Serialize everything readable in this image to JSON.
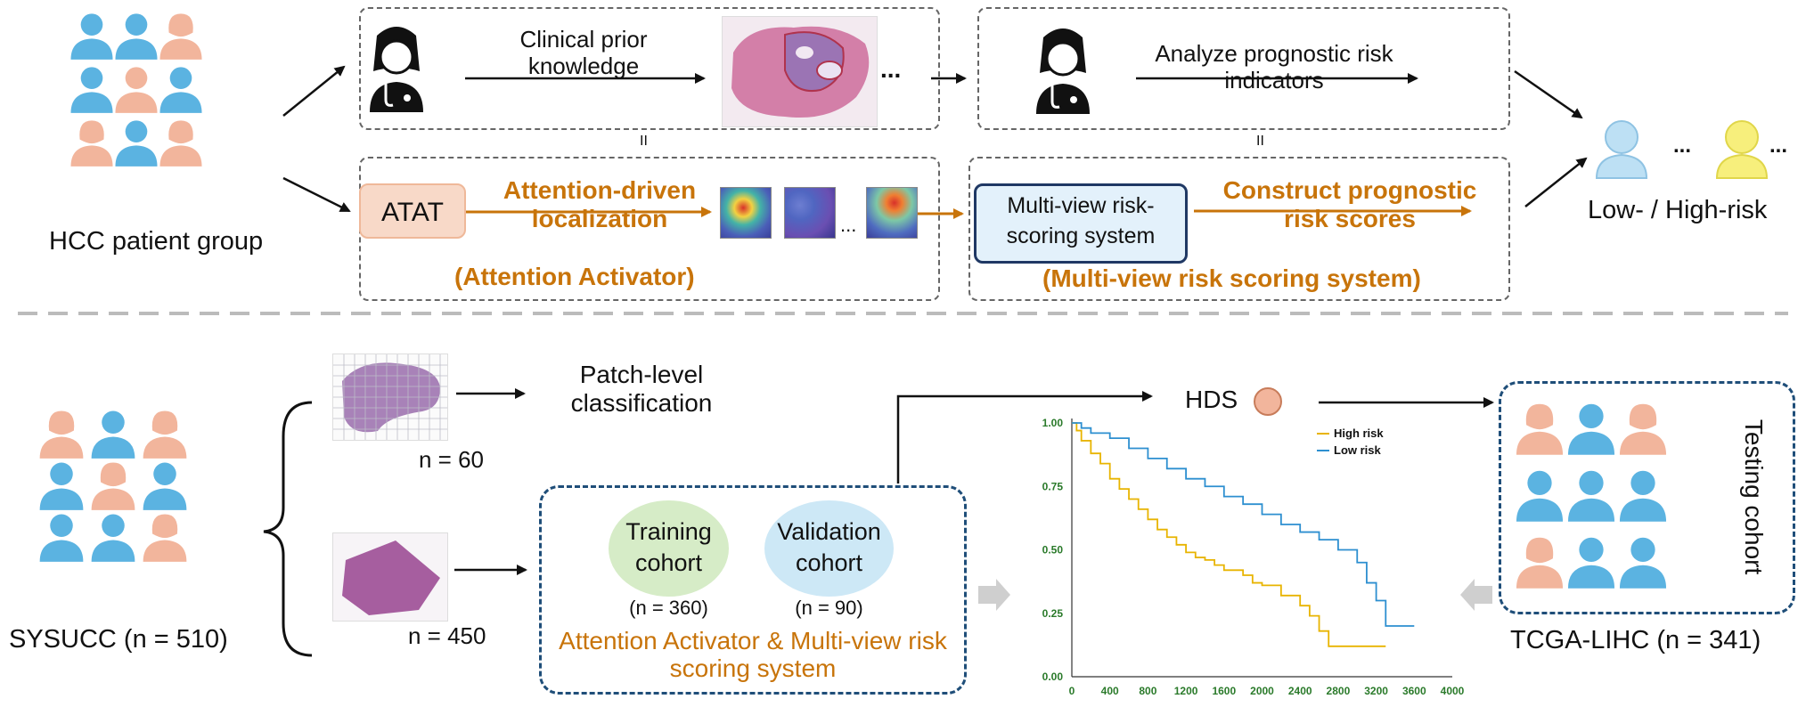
{
  "top": {
    "hcc_label": "HCC patient group",
    "clinical_label": "Clinical prior knowledge",
    "analyze_label": "Analyze prognostic risk indicators",
    "equals_left": "II",
    "equals_right": "II",
    "atat_label": "ATAT",
    "attention_driven": "Attention-driven localization",
    "attention_activator": "(Attention Activator)",
    "multiview_box": "Multi-view risk-scoring system",
    "construct_label": "Construct prognostic risk scores",
    "multiview_paren": "(Multi-view risk scoring system)",
    "ellipsis": "...",
    "risk_label": "Low- / High-risk"
  },
  "bottom": {
    "sysucc_label": "SYSUCC (n = 510)",
    "n60": "n = 60",
    "n450": "n = 450",
    "patch_label": "Patch-level classification",
    "training_label": "Training cohort",
    "training_n": "(n = 360)",
    "validation_label": "Validation cohort",
    "validation_n": "(n = 90)",
    "aa_mv_label": "Attention Activator & Multi-view risk scoring system",
    "hds_label": "HDS",
    "testing_label": "Testing cohort",
    "tcga_label": "TCGA-LIHC (n = 341)"
  },
  "colors": {
    "blue_person": "#5bb3e1",
    "peach_person": "#f2b59c",
    "light_blue_person": "#bde0f4",
    "yellow_person": "#f7ef7c",
    "orange_text": "#c8740a",
    "dark_blue": "#1f4e79",
    "high_risk_line": "#e8b400",
    "low_risk_line": "#2d8fd0"
  },
  "chart_data": {
    "type": "line",
    "title": "",
    "xlabel": "",
    "ylabel": "",
    "xlim": [
      0,
      4000
    ],
    "ylim": [
      0,
      1.0
    ],
    "xticks": [
      0,
      400,
      800,
      1200,
      1600,
      2000,
      2400,
      2800,
      3200,
      3600,
      4000
    ],
    "yticks": [
      0.0,
      0.25,
      0.5,
      0.75,
      1.0
    ],
    "xtick_labels": [
      "0",
      "400",
      "800",
      "1200",
      "1600",
      "2000",
      "2400",
      "2800",
      "3200",
      "3600",
      "4000"
    ],
    "ytick_labels": [
      "0.00",
      "0.25",
      "0.50",
      "0.75",
      "1.00"
    ],
    "legend_position": "top-right",
    "series": [
      {
        "name": "High risk",
        "x": [
          0,
          50,
          100,
          200,
          300,
          400,
          500,
          600,
          700,
          800,
          900,
          1000,
          1100,
          1200,
          1300,
          1400,
          1500,
          1600,
          1700,
          1800,
          1900,
          2000,
          2200,
          2400,
          2500,
          2600,
          2700,
          2800,
          3000,
          3300
        ],
        "y": [
          1.0,
          0.97,
          0.93,
          0.88,
          0.84,
          0.78,
          0.74,
          0.7,
          0.66,
          0.62,
          0.58,
          0.55,
          0.52,
          0.49,
          0.47,
          0.46,
          0.44,
          0.42,
          0.42,
          0.4,
          0.37,
          0.36,
          0.32,
          0.28,
          0.24,
          0.18,
          0.12,
          0.12,
          0.12,
          0.12
        ]
      },
      {
        "name": "Low risk",
        "x": [
          0,
          100,
          200,
          400,
          600,
          800,
          1000,
          1200,
          1400,
          1600,
          1800,
          2000,
          2200,
          2400,
          2600,
          2800,
          3000,
          3100,
          3200,
          3300,
          3400,
          3600
        ],
        "y": [
          1.0,
          0.98,
          0.96,
          0.94,
          0.9,
          0.86,
          0.82,
          0.78,
          0.75,
          0.71,
          0.68,
          0.64,
          0.6,
          0.57,
          0.54,
          0.5,
          0.45,
          0.37,
          0.3,
          0.2,
          0.2,
          0.2
        ]
      }
    ]
  }
}
